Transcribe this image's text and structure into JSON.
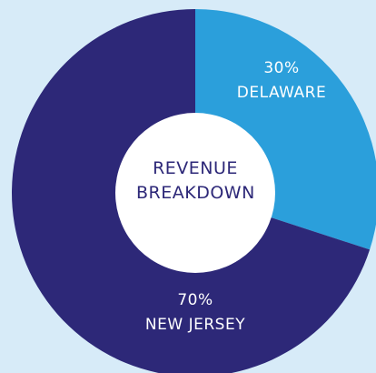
{
  "chart_data": {
    "type": "donut",
    "title": "REVENUE BREAKDOWN",
    "categories": [
      "DELAWARE",
      "NEW JERSEY"
    ],
    "values": [
      30,
      70
    ],
    "value_labels": [
      "30%",
      "70%"
    ],
    "colors": [
      "#2b9fdb",
      "#2d2878"
    ]
  }
}
